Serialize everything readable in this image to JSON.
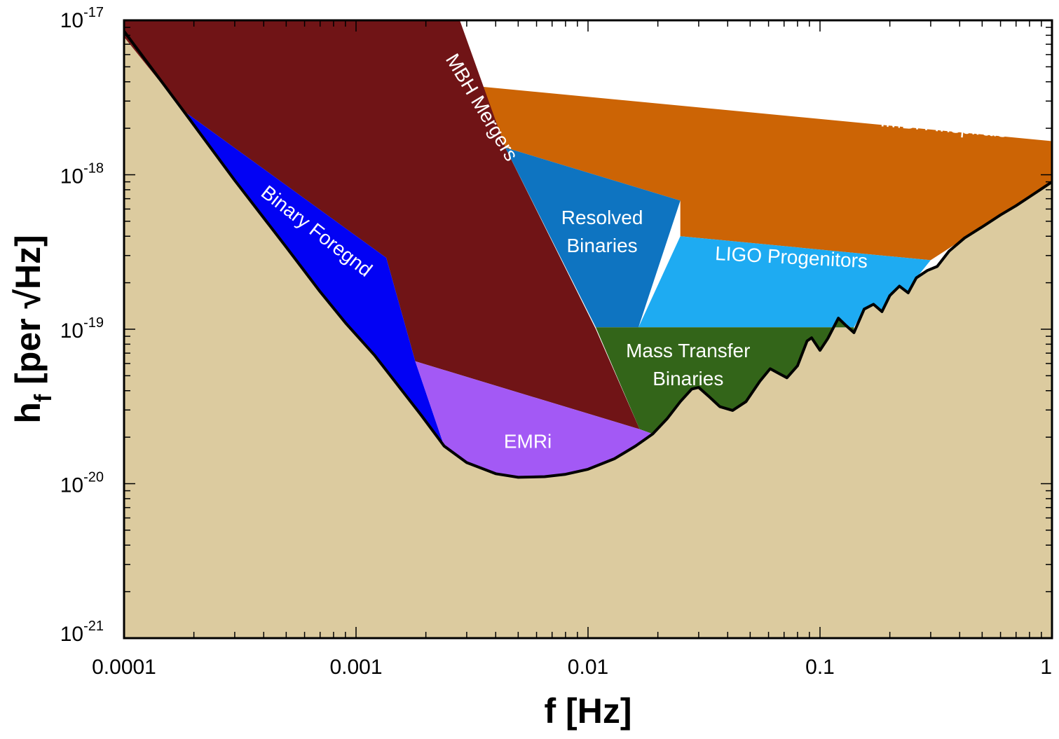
{
  "chart_data": {
    "type": "area",
    "title": "",
    "xlabel": "f [Hz]",
    "ylabel_main": "h",
    "ylabel_sub": "f",
    "ylabel_rest": " [per √Hz]",
    "xscale": "log",
    "yscale": "log",
    "xlim": [
      0.0001,
      1
    ],
    "ylim": [
      1e-21,
      1e-17
    ],
    "grid": false,
    "x_ticks": [
      {
        "value": 0.0001,
        "label": "0.0001"
      },
      {
        "value": 0.001,
        "label": "0.001"
      },
      {
        "value": 0.01,
        "label": "0.01"
      },
      {
        "value": 0.1,
        "label": "0.1"
      },
      {
        "value": 1,
        "label": "1"
      }
    ],
    "y_ticks": [
      {
        "value": 1e-17,
        "base": "10",
        "exp": "-17"
      },
      {
        "value": 1e-18,
        "base": "10",
        "exp": "-18"
      },
      {
        "value": 1e-19,
        "base": "10",
        "exp": "-19"
      },
      {
        "value": 1e-20,
        "base": "10",
        "exp": "-20"
      },
      {
        "value": 1e-21,
        "base": "10",
        "exp": "-21"
      }
    ],
    "background_color": "#dccb9f",
    "sensitivity_curve": {
      "color": "#000000",
      "points": [
        [
          0.0001,
          8.5e-18
        ],
        [
          0.00018,
          2.6e-18
        ],
        [
          0.0003,
          9.2e-19
        ],
        [
          0.0005,
          3.4e-19
        ],
        [
          0.0007,
          1.75e-19
        ],
        [
          0.0009,
          1.1e-19
        ],
        [
          0.0012,
          6.8e-20
        ],
        [
          0.0016,
          3.9e-20
        ],
        [
          0.0019,
          2.8e-20
        ],
        [
          0.0024,
          1.75e-20
        ],
        [
          0.003,
          1.37e-20
        ],
        [
          0.004,
          1.16e-20
        ],
        [
          0.005,
          1.1e-20
        ],
        [
          0.0065,
          1.11e-20
        ],
        [
          0.008,
          1.15e-20
        ],
        [
          0.01,
          1.24e-20
        ],
        [
          0.013,
          1.45e-20
        ],
        [
          0.016,
          1.75e-20
        ],
        [
          0.019,
          2.1e-20
        ],
        [
          0.022,
          2.65e-20
        ],
        [
          0.025,
          3.4e-20
        ],
        [
          0.028,
          4.1e-20
        ],
        [
          0.03,
          4.2e-20
        ],
        [
          0.033,
          3.7e-20
        ],
        [
          0.037,
          3.15e-20
        ],
        [
          0.042,
          2.98e-20
        ],
        [
          0.048,
          3.4e-20
        ],
        [
          0.055,
          4.6e-20
        ],
        [
          0.061,
          5.55e-20
        ],
        [
          0.066,
          5.2e-20
        ],
        [
          0.072,
          4.85e-20
        ],
        [
          0.08,
          5.8e-20
        ],
        [
          0.088,
          8.4e-20
        ],
        [
          0.092,
          8.8e-20
        ],
        [
          0.1,
          7.3e-20
        ],
        [
          0.108,
          8.7e-20
        ],
        [
          0.12,
          1.18e-19
        ],
        [
          0.13,
          1.05e-19
        ],
        [
          0.14,
          9.5e-20
        ],
        [
          0.155,
          1.35e-19
        ],
        [
          0.17,
          1.45e-19
        ],
        [
          0.185,
          1.3e-19
        ],
        [
          0.2,
          1.65e-19
        ],
        [
          0.22,
          1.9e-19
        ],
        [
          0.24,
          1.72e-19
        ],
        [
          0.26,
          2.15e-19
        ],
        [
          0.29,
          2.4e-19
        ],
        [
          0.32,
          2.55e-19
        ],
        [
          0.36,
          3.2e-19
        ],
        [
          0.42,
          3.9e-19
        ],
        [
          0.5,
          4.6e-19
        ],
        [
          0.6,
          5.5e-19
        ],
        [
          0.7,
          6.3e-19
        ],
        [
          0.8,
          7.2e-19
        ],
        [
          0.9,
          8.1e-19
        ],
        [
          1.0,
          9e-19
        ]
      ]
    },
    "regions": [
      {
        "name": "IMBH Inspirals",
        "color": "#cc6405",
        "polygon": [
          [
            0.003,
            3.8e-18
          ],
          [
            1.0,
            1.65e-18
          ],
          [
            1.0,
            9e-19
          ],
          [
            0.3,
            2.8e-19
          ],
          [
            0.025,
            4e-19
          ],
          [
            0.025,
            6.8e-19
          ],
          [
            0.0044,
            1.5e-18
          ]
        ],
        "label": {
          "x": 0.34,
          "y": 1.9e-18,
          "angle": 5
        }
      },
      {
        "name": "MBH Mergers",
        "color": "#701416",
        "polygon": [
          [
            0.0001,
            1e-17
          ],
          [
            0.0028,
            1e-17
          ],
          [
            0.0044,
            1.5e-18
          ],
          [
            0.0108,
            1e-19
          ],
          [
            0.0167,
            2.25e-20
          ],
          [
            0.0018,
            6.2e-20
          ],
          [
            0.00135,
            2.9e-19
          ],
          [
            0.00018,
            2.6e-18
          ],
          [
            0.0001,
            7.8e-18
          ]
        ],
        "label": {
          "x": 0.0033,
          "y": 2.6e-18,
          "angle": 59
        }
      },
      {
        "name": "Resolved Binaries",
        "color": "#0e74c1",
        "polygon": [
          [
            0.0044,
            1.5e-18
          ],
          [
            0.025,
            6.8e-19
          ],
          [
            0.0165,
            1.03e-19
          ],
          [
            0.0108,
            1.03e-19
          ]
        ],
        "label": {
          "x": 0.0115,
          "y": 4.8e-19,
          "angle": 0,
          "lines": [
            "Resolved",
            "Binaries"
          ]
        }
      },
      {
        "name": "LIGO Progenitors",
        "color": "#1eabf2",
        "polygon": [
          [
            0.025,
            4e-19
          ],
          [
            0.3,
            2.8e-19
          ],
          [
            0.26,
            2.15e-19
          ],
          [
            0.24,
            1.72e-19
          ],
          [
            0.22,
            1.9e-19
          ],
          [
            0.2,
            1.65e-19
          ],
          [
            0.185,
            1.3e-19
          ],
          [
            0.17,
            1.45e-19
          ],
          [
            0.155,
            1.35e-19
          ],
          [
            0.14,
            1.03e-19
          ],
          [
            0.0165,
            1.03e-19
          ]
        ],
        "label": {
          "x": 0.075,
          "y": 2.65e-19,
          "angle": 3
        }
      },
      {
        "name": "Mass Transfer Binaries",
        "color": "#336519",
        "polygon": [
          [
            0.0108,
            1.03e-19
          ],
          [
            0.14,
            1.03e-19
          ],
          [
            0.14,
            9.5e-20
          ],
          [
            0.13,
            1.05e-19
          ],
          [
            0.12,
            1.18e-19
          ],
          [
            0.108,
            8.7e-20
          ],
          [
            0.1,
            7.3e-20
          ],
          [
            0.092,
            8.8e-20
          ],
          [
            0.088,
            8.4e-20
          ],
          [
            0.08,
            5.8e-20
          ],
          [
            0.072,
            4.85e-20
          ],
          [
            0.066,
            5.2e-20
          ],
          [
            0.061,
            5.55e-20
          ],
          [
            0.055,
            4.6e-20
          ],
          [
            0.048,
            3.4e-20
          ],
          [
            0.042,
            2.98e-20
          ],
          [
            0.037,
            3.15e-20
          ],
          [
            0.033,
            3.7e-20
          ],
          [
            0.03,
            4.2e-20
          ],
          [
            0.028,
            4.1e-20
          ],
          [
            0.025,
            3.4e-20
          ],
          [
            0.022,
            2.65e-20
          ],
          [
            0.019,
            2.1e-20
          ],
          [
            0.0167,
            2.25e-20
          ]
        ],
        "label": {
          "x": 0.027,
          "y": 6.6e-20,
          "angle": 0,
          "lines": [
            "Mass Transfer",
            "Binaries"
          ]
        }
      },
      {
        "name": "Binary Foregnd",
        "color": "#0202f4",
        "polygon": [
          [
            0.00018,
            2.6e-18
          ],
          [
            0.00135,
            2.9e-19
          ],
          [
            0.0018,
            6.2e-20
          ],
          [
            0.0024,
            1.75e-20
          ],
          [
            0.0019,
            2.8e-20
          ],
          [
            0.0016,
            3.9e-20
          ],
          [
            0.0012,
            6.8e-20
          ],
          [
            0.0009,
            1.1e-19
          ],
          [
            0.0007,
            1.75e-19
          ],
          [
            0.0005,
            3.4e-19
          ],
          [
            0.0003,
            9.2e-19
          ]
        ],
        "label": {
          "x": 0.00065,
          "y": 4e-19,
          "angle": 38
        }
      },
      {
        "name": "EMRi",
        "color": "#a359f5",
        "polygon": [
          [
            0.0018,
            6.2e-20
          ],
          [
            0.0167,
            2.25e-20
          ],
          [
            0.019,
            2.1e-20
          ],
          [
            0.016,
            1.75e-20
          ],
          [
            0.013,
            1.45e-20
          ],
          [
            0.01,
            1.24e-20
          ],
          [
            0.008,
            1.15e-20
          ],
          [
            0.0065,
            1.11e-20
          ],
          [
            0.005,
            1.1e-20
          ],
          [
            0.004,
            1.16e-20
          ],
          [
            0.003,
            1.37e-20
          ],
          [
            0.0024,
            1.75e-20
          ]
        ],
        "label": {
          "x": 0.0055,
          "y": 1.7e-20,
          "angle": 0
        }
      }
    ]
  }
}
